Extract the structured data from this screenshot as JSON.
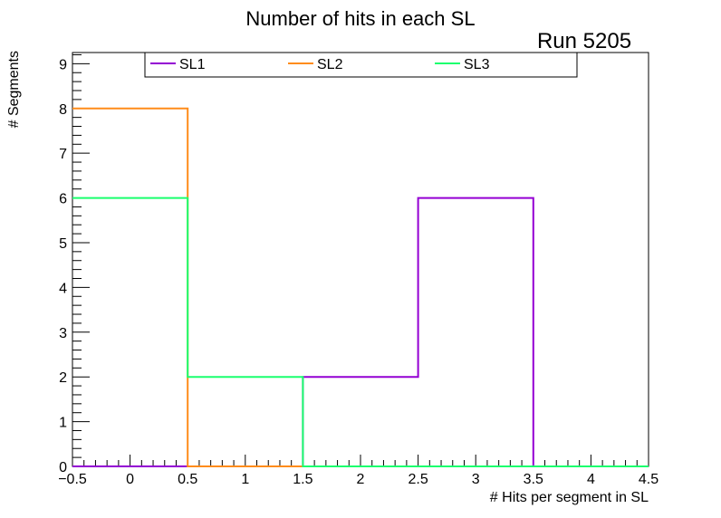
{
  "chart_data": {
    "type": "histogram",
    "title": "Number of hits in each SL",
    "annotation": "Run 5205",
    "xlabel": "# Hits per segment in SL",
    "ylabel": "# Segments",
    "xlim": [
      -0.5,
      4.5
    ],
    "ylim": [
      0,
      9.25
    ],
    "x_ticks": [
      "−0.5",
      "0",
      "0.5",
      "1",
      "1.5",
      "2",
      "2.5",
      "3",
      "3.5",
      "4",
      "4.5"
    ],
    "y_ticks": [
      "0",
      "1",
      "2",
      "3",
      "4",
      "5",
      "6",
      "7",
      "8",
      "9"
    ],
    "bin_edges": [
      -0.5,
      0.5,
      1.5,
      2.5,
      3.5,
      4.5
    ],
    "legend_position": "top",
    "series": [
      {
        "name": "SL1",
        "color": "#9400d3",
        "values": [
          0,
          0,
          2,
          6,
          0
        ]
      },
      {
        "name": "SL2",
        "color": "#ff8c1a",
        "values": [
          8,
          0,
          0,
          0,
          0
        ]
      },
      {
        "name": "SL3",
        "color": "#1aff6e",
        "values": [
          6,
          2,
          0,
          0,
          0
        ]
      }
    ]
  }
}
